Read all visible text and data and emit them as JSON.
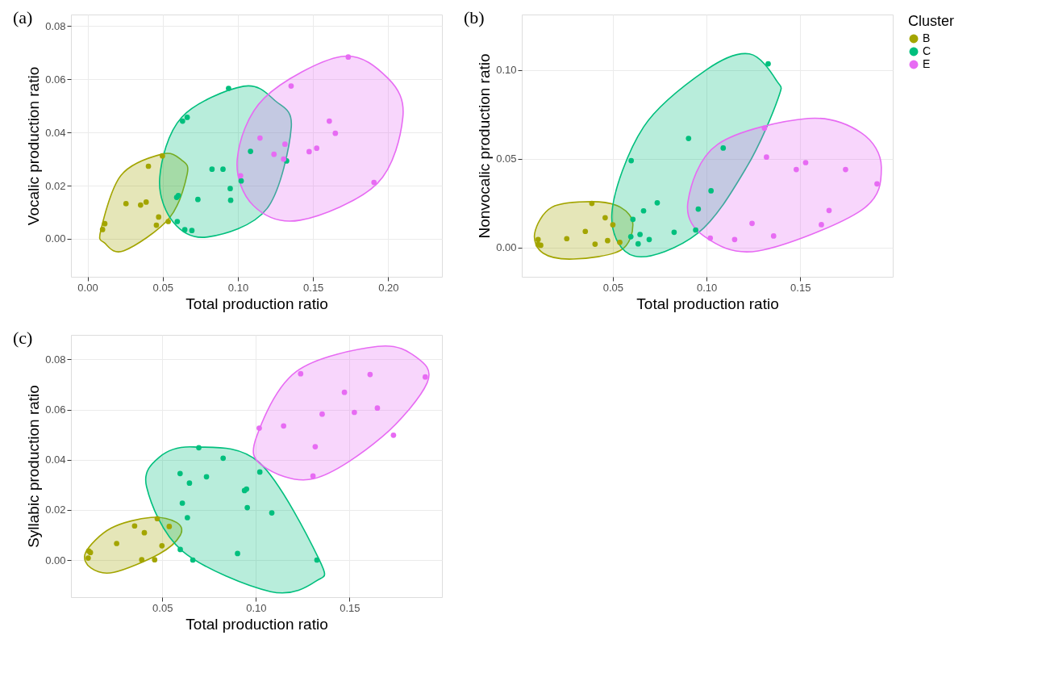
{
  "chart_data": [
    {
      "type": "scatter",
      "annotations": [
        "(a)"
      ],
      "xlabel": "Total production ratio",
      "ylabel": "Vocalic production ratio",
      "legend": "right",
      "legend_title": "Cluster",
      "grid": true,
      "marker": "circle",
      "xlim": [
        -0.011,
        0.2357
      ],
      "ylim": [
        -0.0143,
        0.0844
      ],
      "xticks": [
        {
          "value": 0,
          "label": "0.00"
        },
        {
          "value": 0.05,
          "label": "0.05"
        },
        {
          "value": 0.1,
          "label": "0.10"
        },
        {
          "value": 0.15,
          "label": "0.15"
        },
        {
          "value": 0.2,
          "label": "0.20"
        }
      ],
      "yticks": [
        {
          "value": 0,
          "label": "0.00"
        },
        {
          "value": 0.02,
          "label": "0.02"
        },
        {
          "value": 0.04,
          "label": "0.04"
        },
        {
          "value": 0.06,
          "label": "0.06"
        },
        {
          "value": 0.08,
          "label": "0.08"
        }
      ],
      "series": [
        {
          "type": "area",
          "marker": "none",
          "color": "#a3a500",
          "x": [
            0.0498,
            0.0626,
            0.0663,
            0.0544,
            0.0242,
            0.0114,
            0.0088,
            0.0223
          ],
          "values": [
            0.0319,
            0.0296,
            0.0244,
            0.0078,
            -0.0045,
            -0.0016,
            0.0031,
            0.0239
          ]
        },
        {
          "type": "area",
          "marker": "none",
          "color": "#00bf7d",
          "x": [
            0.1038,
            0.1249,
            0.1355,
            0.1194,
            0.08,
            0.0571,
            0.048,
            0.0626
          ],
          "values": [
            0.0574,
            0.0519,
            0.042,
            0.0114,
            0.0007,
            0.0062,
            0.0229,
            0.0457
          ]
        },
        {
          "type": "area",
          "marker": "none",
          "color": "#e76bf3",
          "x": [
            0.1689,
            0.2,
            0.2097,
            0.1927,
            0.1414,
            0.1103,
            0.0996,
            0.1176
          ],
          "values": [
            0.0686,
            0.0603,
            0.0457,
            0.0208,
            0.007,
            0.0125,
            0.0301,
            0.053
          ]
        },
        {
          "name": "B",
          "color": "#a3a500",
          "x": [
            0.01,
            0.0115,
            0.0256,
            0.0353,
            0.039,
            0.0405,
            0.0473,
            0.0458,
            0.0498,
            0.0537
          ],
          "values": [
            0.0035,
            0.0057,
            0.0132,
            0.0127,
            0.0138,
            0.0273,
            0.0082,
            0.0051,
            0.0312,
            0.0065
          ]
        },
        {
          "name": "C",
          "color": "#00bf7d",
          "x": [
            0.0938,
            0.0632,
            0.0663,
            0.1084,
            0.1324,
            0.0828,
            0.0901,
            0.1022,
            0.0949,
            0.0952,
            0.0734,
            0.0593,
            0.0604,
            0.0597,
            0.0647,
            0.0694
          ],
          "values": [
            0.0566,
            0.0443,
            0.0457,
            0.0329,
            0.0293,
            0.0262,
            0.0262,
            0.0218,
            0.0189,
            0.0145,
            0.0148,
            0.0156,
            0.0163,
            0.0065,
            0.0034,
            0.0031
          ]
        },
        {
          "name": "E",
          "color": "#e76bf3",
          "x": [
            0.1734,
            0.1354,
            0.1608,
            0.1648,
            0.1147,
            0.1313,
            0.124,
            0.1304,
            0.1474,
            0.1524,
            0.1018,
            0.1905
          ],
          "values": [
            0.0684,
            0.0575,
            0.0443,
            0.0397,
            0.0379,
            0.0356,
            0.0318,
            0.03,
            0.0328,
            0.0341,
            0.0237,
            0.0212
          ]
        }
      ]
    },
    {
      "type": "scatter",
      "annotations": [
        "(b)"
      ],
      "xlabel": "Total production ratio",
      "ylabel": "Nonvocalic production ratio",
      "legend": false,
      "grid": true,
      "marker": "circle",
      "xlim": [
        0.0014,
        0.1994
      ],
      "ylim": [
        -0.0165,
        0.1314
      ],
      "xticks": [
        {
          "value": 0.05,
          "label": "0.05"
        },
        {
          "value": 0.1,
          "label": "0.10"
        },
        {
          "value": 0.15,
          "label": "0.15"
        }
      ],
      "yticks": [
        {
          "value": 0,
          "label": "0.00"
        },
        {
          "value": 0.05,
          "label": "0.05"
        },
        {
          "value": 0.1,
          "label": "0.10"
        }
      ],
      "series": [
        {
          "type": "area",
          "marker": "none",
          "color": "#a3a500",
          "x": [
            0.0388,
            0.0541,
            0.0607,
            0.0541,
            0.0289,
            0.0128,
            0.0083,
            0.0174
          ],
          "values": [
            0.0259,
            0.0227,
            0.0129,
            -0.0016,
            -0.0065,
            -0.0032,
            0.0081,
            0.0227
          ]
        },
        {
          "type": "area",
          "marker": "none",
          "color": "#00bf7d",
          "x": [
            0.1229,
            0.1375,
            0.1382,
            0.1214,
            0.0954,
            0.0618,
            0.0495,
            0.0664,
            0.1
          ],
          "values": [
            0.1092,
            0.0939,
            0.0841,
            0.0453,
            0.0081,
            -0.0049,
            0.0194,
            0.068,
            0.1003
          ]
        },
        {
          "type": "area",
          "marker": "none",
          "color": "#e76bf3",
          "x": [
            0.1543,
            0.1826,
            0.1933,
            0.1826,
            0.1275,
            0.0985,
            0.0901,
            0.1061
          ],
          "values": [
            0.0728,
            0.0647,
            0.0453,
            0.021,
            -0.0019,
            0.0065,
            0.0259,
            0.0583
          ]
        },
        {
          "name": "B",
          "color": "#a3a500",
          "x": [
            0.0101,
            0.0115,
            0.0101,
            0.0254,
            0.0353,
            0.0388,
            0.0405,
            0.0459,
            0.0472,
            0.05,
            0.0537
          ],
          "values": [
            0.0045,
            0.0013,
            0.0016,
            0.005,
            0.0091,
            0.0249,
            0.0019,
            0.0168,
            0.0039,
            0.0128,
            0.0029
          ]
        },
        {
          "name": "C",
          "color": "#00bf7d",
          "x": [
            0.1329,
            0.0904,
            0.1089,
            0.0598,
            0.1024,
            0.0737,
            0.0664,
            0.0956,
            0.0607,
            0.0827,
            0.0942,
            0.0596,
            0.0645,
            0.0635,
            0.0694
          ],
          "values": [
            0.1036,
            0.0615,
            0.0561,
            0.049,
            0.032,
            0.0252,
            0.0207,
            0.0217,
            0.0159,
            0.0086,
            0.0099,
            0.0061,
            0.0074,
            0.0021,
            0.0045
          ]
        },
        {
          "name": "E",
          "color": "#e76bf3",
          "x": [
            0.1309,
            0.132,
            0.1529,
            0.1479,
            0.1742,
            0.191,
            0.1654,
            0.1613,
            0.1243,
            0.1358,
            0.102,
            0.115
          ],
          "values": [
            0.0673,
            0.051,
            0.0479,
            0.044,
            0.044,
            0.0359,
            0.0209,
            0.0129,
            0.0136,
            0.0065,
            0.0053,
            0.0045
          ]
        }
      ]
    },
    {
      "type": "scatter",
      "annotations": [
        "(c)"
      ],
      "xlabel": "Total production ratio",
      "ylabel": "Syllabic production ratio",
      "legend": false,
      "grid": true,
      "marker": "circle",
      "xlim": [
        0.0012,
        0.1994
      ],
      "ylim": [
        -0.0148,
        0.0898
      ],
      "xticks": [
        {
          "value": 0.05,
          "label": "0.05"
        },
        {
          "value": 0.1,
          "label": "0.10"
        },
        {
          "value": 0.15,
          "label": "0.15"
        }
      ],
      "yticks": [
        {
          "value": 0,
          "label": "0.00"
        },
        {
          "value": 0.02,
          "label": "0.02"
        },
        {
          "value": 0.04,
          "label": "0.04"
        },
        {
          "value": 0.06,
          "label": "0.06"
        },
        {
          "value": 0.08,
          "label": "0.08"
        }
      ],
      "series": [
        {
          "type": "area",
          "marker": "none",
          "color": "#a3a500",
          "x": [
            0.0439,
            0.0576,
            0.0596,
            0.0485,
            0.0241,
            0.0119,
            0.0091,
            0.0226
          ],
          "values": [
            0.017,
            0.015,
            0.0099,
            0.0025,
            -0.0049,
            -0.0032,
            0.0031,
            0.0127
          ]
        },
        {
          "type": "area",
          "marker": "none",
          "color": "#00bf7d",
          "x": [
            0.0668,
            0.1018,
            0.1338,
            0.1323,
            0.1079,
            0.0607,
            0.0416,
            0.0485
          ],
          "values": [
            0.0451,
            0.0389,
            0.0002,
            -0.0083,
            -0.0126,
            0.0036,
            0.0292,
            0.0411
          ]
        },
        {
          "type": "area",
          "marker": "none",
          "color": "#e76bf3",
          "x": [
            0.1651,
            0.1857,
            0.1915,
            0.1674,
            0.1308,
            0.1034,
            0.1003,
            0.1216
          ],
          "values": [
            0.0852,
            0.0809,
            0.0707,
            0.0491,
            0.0324,
            0.0377,
            0.0491,
            0.0752
          ]
        },
        {
          "name": "B",
          "color": "#a3a500",
          "x": [
            0.0104,
            0.0107,
            0.0116,
            0.0256,
            0.0352,
            0.0404,
            0.039,
            0.0459,
            0.0473,
            0.0498,
            0.0537
          ],
          "values": [
            0.0008,
            0.0036,
            0.003,
            0.0066,
            0.0136,
            0.0109,
            0.0001,
            0.0001,
            0.0165,
            0.0057,
            0.0134
          ]
        },
        {
          "name": "C",
          "color": "#00bf7d",
          "x": [
            0.0695,
            0.0825,
            0.0595,
            0.0645,
            0.0736,
            0.1021,
            0.0939,
            0.095,
            0.0607,
            0.0954,
            0.1085,
            0.0634,
            0.0596,
            0.0902,
            0.0663,
            0.1326
          ],
          "values": [
            0.0448,
            0.0406,
            0.0345,
            0.0307,
            0.0332,
            0.0351,
            0.0277,
            0.0283,
            0.0227,
            0.0209,
            0.0188,
            0.0169,
            0.0042,
            0.0026,
            0.0,
            0.0
          ]
        },
        {
          "name": "E",
          "color": "#e76bf3",
          "x": [
            0.1239,
            0.161,
            0.1905,
            0.1473,
            0.1649,
            0.1526,
            0.1354,
            0.1148,
            0.1018,
            0.1735,
            0.1317,
            0.1305
          ],
          "values": [
            0.0743,
            0.074,
            0.073,
            0.0669,
            0.0606,
            0.0589,
            0.0582,
            0.0535,
            0.0526,
            0.0498,
            0.0452,
            0.0335
          ]
        }
      ]
    }
  ]
}
